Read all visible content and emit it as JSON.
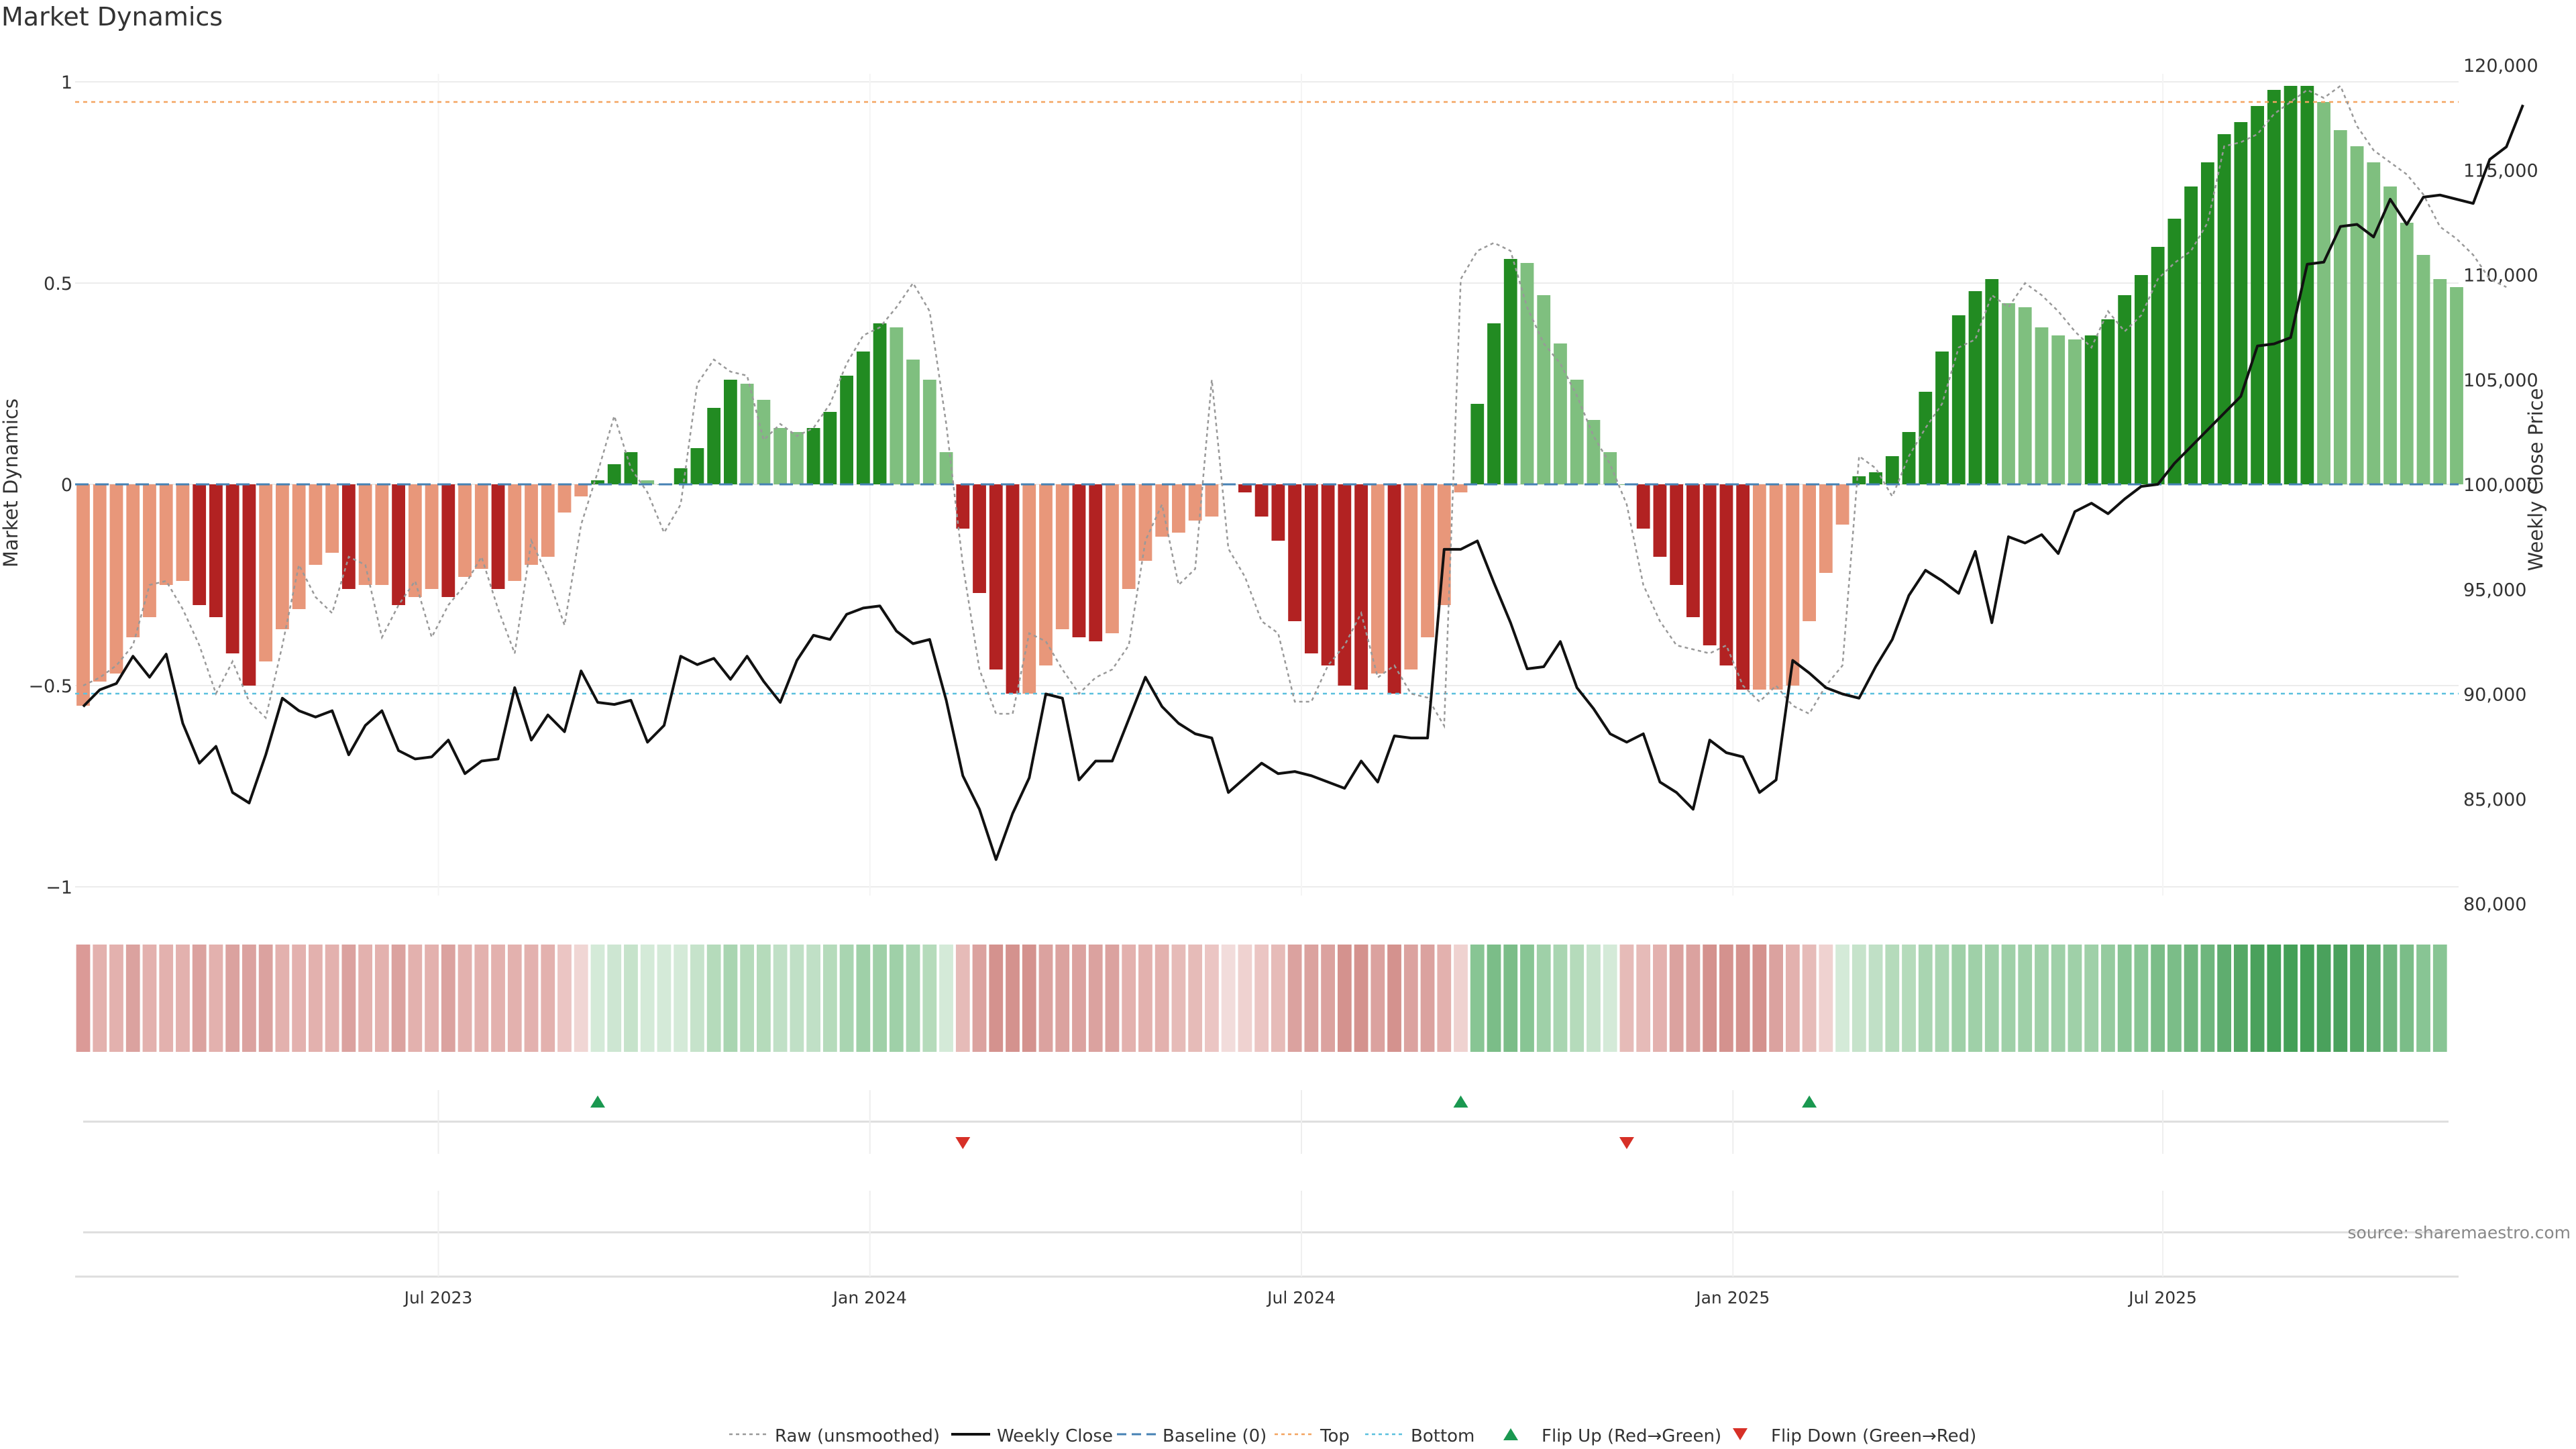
{
  "chart_data": {
    "type": "bar",
    "title": "Market Dynamics",
    "ylabel_left": "Market Dynamics",
    "ylabel_right": "Weekly Close Price",
    "source": "source: sharemaestro.com",
    "ylim_left": [
      -1.05,
      1.02
    ],
    "ylim_right": [
      79500,
      120300
    ],
    "yticks_left": [
      1,
      0.5,
      0,
      -0.5,
      -1
    ],
    "ytick_labels_left": [
      "1",
      "0.5",
      "0",
      "−0.5",
      "−1"
    ],
    "yticks_right": [
      120000,
      115000,
      110000,
      105000,
      100000,
      95000,
      90000,
      85000,
      80000
    ],
    "ytick_labels_right": [
      "120,000",
      "115,000",
      "110,000",
      "105,000",
      "100,000",
      "95,000",
      "90,000",
      "85,000",
      "80,000"
    ],
    "xtick_positions": [
      21.4,
      47.4,
      73.4,
      99.4,
      125.3
    ],
    "xtick_labels": [
      "Jul 2023",
      "Jan 2024",
      "Jul 2024",
      "Jan 2025",
      "Jul 2025"
    ],
    "top_level": 0.95,
    "bottom_level": -0.52,
    "baseline": 0,
    "dynamics": [
      -0.55,
      -0.49,
      -0.47,
      -0.38,
      -0.33,
      -0.25,
      -0.24,
      -0.3,
      -0.33,
      -0.42,
      -0.5,
      -0.44,
      -0.36,
      -0.31,
      -0.2,
      -0.17,
      -0.26,
      -0.25,
      -0.25,
      -0.3,
      -0.28,
      -0.26,
      -0.28,
      -0.23,
      -0.21,
      -0.26,
      -0.24,
      -0.2,
      -0.18,
      -0.07,
      -0.03,
      0.01,
      0.05,
      0.08,
      0.01,
      0,
      0.04,
      0.09,
      0.19,
      0.26,
      0.25,
      0.21,
      0.14,
      0.13,
      0.14,
      0.18,
      0.27,
      0.33,
      0.4,
      0.39,
      0.31,
      0.26,
      0.08,
      -0.11,
      -0.27,
      -0.46,
      -0.52,
      -0.52,
      -0.45,
      -0.36,
      -0.38,
      -0.39,
      -0.37,
      -0.26,
      -0.19,
      -0.13,
      -0.12,
      -0.09,
      -0.08,
      0,
      -0.02,
      -0.08,
      -0.14,
      -0.34,
      -0.42,
      -0.45,
      -0.5,
      -0.51,
      -0.47,
      -0.52,
      -0.46,
      -0.38,
      -0.3,
      -0.02,
      0.2,
      0.4,
      0.56,
      0.55,
      0.47,
      0.35,
      0.26,
      0.16,
      0.08,
      0,
      -0.11,
      -0.18,
      -0.25,
      -0.33,
      -0.4,
      -0.45,
      -0.51,
      -0.51,
      -0.51,
      -0.5,
      -0.34,
      -0.22,
      -0.1,
      0.02,
      0.03,
      0.07,
      0.13,
      0.23,
      0.33,
      0.42,
      0.48,
      0.51,
      0.45,
      0.44,
      0.39,
      0.37,
      0.36,
      0.37,
      0.41,
      0.47,
      0.52,
      0.59,
      0.66,
      0.74,
      0.8,
      0.87,
      0.9,
      0.94,
      0.98,
      0.99,
      0.99,
      0.95,
      0.88,
      0.84,
      0.8,
      0.74,
      0.65,
      0.57,
      0.51,
      0.49
    ],
    "raw": [
      -0.5,
      -0.48,
      -0.45,
      -0.4,
      -0.25,
      -0.24,
      -0.31,
      -0.4,
      -0.52,
      -0.44,
      -0.54,
      -0.58,
      -0.4,
      -0.2,
      -0.28,
      -0.32,
      -0.18,
      -0.2,
      -0.38,
      -0.3,
      -0.24,
      -0.38,
      -0.3,
      -0.25,
      -0.18,
      -0.31,
      -0.42,
      -0.14,
      -0.23,
      -0.35,
      -0.1,
      0.03,
      0.17,
      0.04,
      -0.02,
      -0.12,
      -0.05,
      0.25,
      0.31,
      0.28,
      0.27,
      0.11,
      0.15,
      0.12,
      0.14,
      0.2,
      0.3,
      0.37,
      0.39,
      0.44,
      0.5,
      0.43,
      0.15,
      -0.2,
      -0.46,
      -0.57,
      -0.57,
      -0.37,
      -0.39,
      -0.46,
      -0.52,
      -0.48,
      -0.46,
      -0.4,
      -0.14,
      -0.05,
      -0.25,
      -0.21,
      0.26,
      -0.16,
      -0.23,
      -0.34,
      -0.37,
      -0.54,
      -0.54,
      -0.45,
      -0.4,
      -0.32,
      -0.48,
      -0.45,
      -0.52,
      -0.53,
      -0.6,
      0.51,
      0.58,
      0.6,
      0.58,
      0.44,
      0.35,
      0.3,
      0.22,
      0.12,
      0.05,
      -0.05,
      -0.25,
      -0.34,
      -0.4,
      -0.41,
      -0.42,
      -0.4,
      -0.5,
      -0.54,
      -0.5,
      -0.55,
      -0.57,
      -0.5,
      -0.45,
      0.07,
      0.04,
      -0.03,
      0.07,
      0.14,
      0.2,
      0.34,
      0.36,
      0.47,
      0.44,
      0.5,
      0.47,
      0.43,
      0.38,
      0.34,
      0.43,
      0.38,
      0.42,
      0.51,
      0.55,
      0.58,
      0.65,
      0.84,
      0.85,
      0.87,
      0.92,
      0.95,
      0.98,
      0.96,
      0.99,
      0.89,
      0.83,
      0.8,
      0.77,
      0.72,
      0.64,
      0.61,
      0.57,
      0.51,
      0.49
    ],
    "weekly_close": [
      89400,
      90200,
      90500,
      91800,
      90800,
      91900,
      88600,
      86700,
      87500,
      85300,
      84800,
      87100,
      89800,
      89200,
      88900,
      89200,
      87100,
      88500,
      89200,
      87300,
      86900,
      87000,
      87800,
      86200,
      86800,
      86900,
      90300,
      87800,
      89000,
      88200,
      91100,
      89600,
      89500,
      89700,
      87700,
      88500,
      91800,
      91400,
      91700,
      90700,
      91800,
      90600,
      89600,
      91600,
      92800,
      92600,
      93800,
      94100,
      94200,
      93000,
      92400,
      92600,
      89700,
      86100,
      84500,
      82100,
      84300,
      86000,
      90000,
      89800,
      85900,
      86800,
      86800,
      88800,
      90800,
      89400,
      88600,
      88100,
      87900,
      85300,
      86000,
      86700,
      86200,
      86300,
      86100,
      85800,
      85500,
      86800,
      85800,
      88000,
      87900,
      87900,
      96900,
      96900,
      97300,
      95300,
      93400,
      91200,
      91300,
      92500,
      90300,
      89300,
      88100,
      87700,
      88100,
      85800,
      85300,
      84500,
      87800,
      87200,
      87000,
      85300,
      85900,
      91600,
      91000,
      90300,
      90000,
      89800,
      91300,
      92600,
      94700,
      95900,
      95400,
      94800,
      96800,
      93400,
      97500,
      97200,
      97600,
      96700,
      98700,
      99100,
      98600,
      99300,
      99900,
      100000,
      101000,
      101800,
      102600,
      103400,
      104200,
      106600,
      106700,
      107000,
      110500,
      110600,
      112300,
      112400,
      111800,
      113600,
      112400,
      113700,
      113800,
      113600,
      113400,
      115500,
      116100,
      118100
    ],
    "heat_colors": [
      "#db9a97",
      "#e3b1ae",
      "#e3b1ae",
      "#dba29f",
      "#e3b1ae",
      "#e3b1ae",
      "#e3b1ae",
      "#dba29f",
      "#e3b1ae",
      "#dba29f",
      "#dba29f",
      "#dba29f",
      "#e3b1ae",
      "#e3b1ae",
      "#e3b1ae",
      "#e3b1ae",
      "#dba29f",
      "#e3b1ae",
      "#e3b1ae",
      "#dba29f",
      "#e3b1ae",
      "#e3b1ae",
      "#dba29f",
      "#e3b1ae",
      "#e3b1ae",
      "#e3b1ae",
      "#e3b1ae",
      "#e3b1ae",
      "#e3b1ae",
      "#ebc5c3",
      "#f0d6d4",
      "#d4ead8",
      "#cde6d2",
      "#c6e3cb",
      "#d4ead8",
      "#d4ead8",
      "#d4ead8",
      "#c6e3cb",
      "#b5dbbb",
      "#a9d5b1",
      "#b5dbbb",
      "#b5dbbb",
      "#c0e0c6",
      "#c0e0c6",
      "#c0e0c6",
      "#b5dbbb",
      "#a9d5b1",
      "#9fd0a8",
      "#9fd0a8",
      "#9fd0a8",
      "#a9d5b1",
      "#b5dbbb",
      "#d4ead8",
      "#e6bbb8",
      "#dba29f",
      "#d4928e",
      "#d4928e",
      "#d4928e",
      "#dba29f",
      "#dba29f",
      "#dba29f",
      "#dba29f",
      "#dba29f",
      "#e3b1ae",
      "#e3b1ae",
      "#e3b1ae",
      "#e6bbb8",
      "#e6bbb8",
      "#ebc5c3",
      "#f2dcdb",
      "#efd2d0",
      "#ebc5c3",
      "#e6bbb8",
      "#dba29f",
      "#dba29f",
      "#dba29f",
      "#d4928e",
      "#d4928e",
      "#dba29f",
      "#d4928e",
      "#dba29f",
      "#dba29f",
      "#e3b1ae",
      "#efd2d0",
      "#88c594",
      "#7bbd88",
      "#7bbd88",
      "#88c594",
      "#9fd0a8",
      "#a9d5b1",
      "#b5dbbb",
      "#c6e3cb",
      "#d4ead8",
      "#e6bbb8",
      "#e6bbb8",
      "#e3b1ae",
      "#dba29f",
      "#dba29f",
      "#d4928e",
      "#d4928e",
      "#d4928e",
      "#d4928e",
      "#dba29f",
      "#e3b1ae",
      "#e6bbb8",
      "#efd2d0",
      "#d4ead8",
      "#c6e3cb",
      "#c0e0c6",
      "#b5dbbb",
      "#b5dbbb",
      "#a9d5b1",
      "#a9d5b1",
      "#9fd0a8",
      "#9fd0a8",
      "#9fd0a8",
      "#9fd0a8",
      "#9fd0a8",
      "#9fd0a8",
      "#9fd0a8",
      "#9fd0a8",
      "#9fd0a8",
      "#95cb9f",
      "#88c594",
      "#88c594",
      "#7bbd88",
      "#7bbd88",
      "#6fb67d",
      "#6fb67d",
      "#5fad6f",
      "#55a866",
      "#4aa15c",
      "#44a057",
      "#44a057",
      "#44a057",
      "#4aa15c",
      "#4aa15c",
      "#55a866",
      "#5fad6f",
      "#6fb67d",
      "#7bbd88",
      "#88c594",
      "#88c594"
    ],
    "flip_up_index": [
      31,
      83,
      104
    ],
    "flip_down_index": [
      53,
      93
    ],
    "colors": {
      "red_strong": "#b22222",
      "red_light": "#e8977a",
      "green_strong": "#228b22",
      "green_light": "#7fbf7f",
      "close_line": "#111111",
      "raw_line": "#999999",
      "baseline": "#4682b4",
      "top": "#f4a460",
      "bottom": "#5bc0de",
      "flip_up": "#1a9850",
      "flip_down": "#d73027"
    },
    "legend": [
      {
        "label": "Raw (unsmoothed)",
        "kind": "raw"
      },
      {
        "label": "Weekly Close",
        "kind": "close"
      },
      {
        "label": "Baseline (0)",
        "kind": "baseline"
      },
      {
        "label": "Top",
        "kind": "top"
      },
      {
        "label": "Bottom",
        "kind": "bottom"
      },
      {
        "label": "Flip Up (Red→Green)",
        "kind": "flip_up"
      },
      {
        "label": "Flip Down (Green→Red)",
        "kind": "flip_down"
      }
    ]
  }
}
